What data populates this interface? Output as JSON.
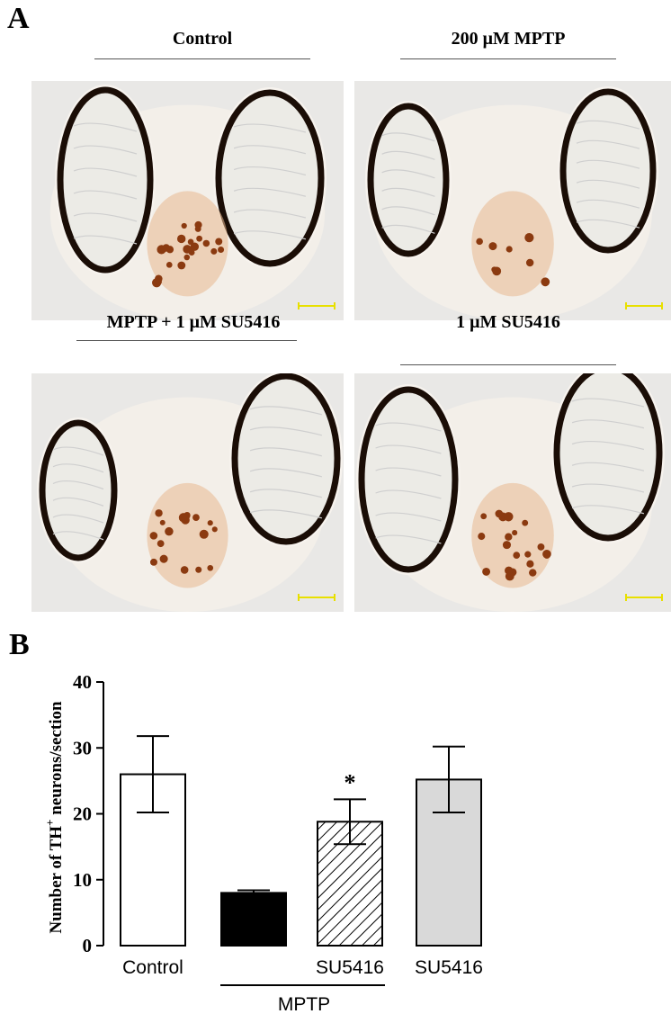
{
  "panel_a": {
    "letter": "A",
    "images": [
      {
        "title": "Control",
        "condition": "control"
      },
      {
        "title": "200 μM MPTP",
        "condition": "mptp"
      },
      {
        "title": "MPTP + 1 μM SU5416",
        "condition": "mptp_su"
      },
      {
        "title": "1 μM SU5416",
        "condition": "su"
      }
    ],
    "scale_bar_color": "#e8e000",
    "stain_color": "#8b3a10"
  },
  "panel_b": {
    "letter": "B",
    "group_label": "MPTP",
    "significance_marker": "*"
  },
  "chart_data": {
    "type": "bar",
    "categories": [
      "Control",
      "",
      "SU5416",
      "SU5416"
    ],
    "values": [
      26,
      8,
      18.8,
      25.2
    ],
    "errors": [
      5.8,
      0.4,
      3.4,
      5.0
    ],
    "fills": [
      "white",
      "black",
      "hatched",
      "lightgray"
    ],
    "ylabel_prefix": "Number of TH",
    "ylabel_superscript": "+",
    "ylabel_suffix": " neurons/section",
    "ylim": [
      0,
      40
    ],
    "yticks": [
      0,
      10,
      20,
      30,
      40
    ],
    "significant": [
      false,
      false,
      true,
      false
    ]
  }
}
